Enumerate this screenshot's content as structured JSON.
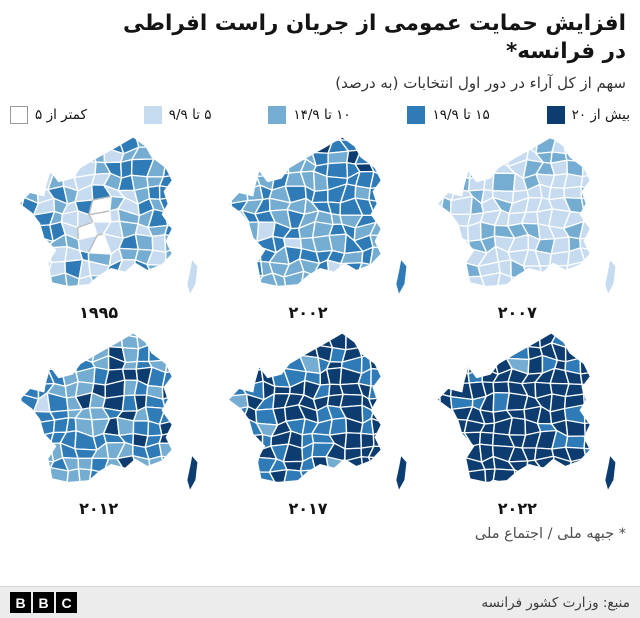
{
  "header": {
    "title_line1": "افزایش حمایت عمومی از جریان راست افراطی",
    "title_line2": "در فرانسه*",
    "subtitle": "سهم از کل آراء در دور اول انتخابات (به درصد)"
  },
  "legend": {
    "items": [
      {
        "label": "بیش از ۲۰",
        "color": "#0d3d70"
      },
      {
        "label": "۱۵ تا ۱۹/۹",
        "color": "#2e7bb8"
      },
      {
        "label": "۱۰ تا ۱۴/۹",
        "color": "#74add1"
      },
      {
        "label": "۵ تا ۹/۹",
        "color": "#c6dbef"
      },
      {
        "label": "کمتر از ۵",
        "color": "#ffffff"
      }
    ]
  },
  "footnote": "* جبهه ملی / اجتماع ملی",
  "footer": {
    "source": "منبع: وزارت کشور فرانسه",
    "logo_letters": [
      "B",
      "B",
      "C"
    ]
  },
  "chart_data": {
    "type": "heatmap",
    "subtype": "choropleth-map-series",
    "geography": "France, by department",
    "title": "افزایش حمایت عمومی از جریان راست افراطی در فرانسه*",
    "subtitle": "سهم از کل آراء در دور اول انتخابات (به درصد)",
    "unit_note": "به درصد",
    "legend_position": "top",
    "bins": [
      {
        "label": "کمتر از ۵",
        "min": 0,
        "max": 5,
        "color": "#ffffff"
      },
      {
        "label": "۵ تا ۹/۹",
        "min": 5,
        "max": 9.9,
        "color": "#c6dbef"
      },
      {
        "label": "۱۰ تا ۱۴/۹",
        "min": 10,
        "max": 14.9,
        "color": "#74add1"
      },
      {
        "label": "۱۵ تا ۱۹/۹",
        "min": 15,
        "max": 19.9,
        "color": "#2e7bb8"
      },
      {
        "label": "بیش از ۲۰",
        "min": 20,
        "max": null,
        "color": "#0d3d70"
      }
    ],
    "maps": [
      {
        "year": 1995,
        "label_fa": "۱۹۹۵",
        "bin_share_estimate": [
          0.08,
          0.3,
          0.33,
          0.21,
          0.08
        ],
        "east_bias": 0.3,
        "center_light": true,
        "paris_light": false,
        "corsica_bin": 1
      },
      {
        "year": 2002,
        "label_fa": "۲۰۰۲",
        "bin_share_estimate": [
          0.02,
          0.17,
          0.32,
          0.29,
          0.2
        ],
        "east_bias": 0.4,
        "center_light": false,
        "paris_light": false,
        "corsica_bin": 3
      },
      {
        "year": 2007,
        "label_fa": "۲۰۰۷",
        "bin_share_estimate": [
          0.04,
          0.68,
          0.24,
          0.03,
          0.01
        ],
        "east_bias": 0.15,
        "center_light": false,
        "paris_light": false,
        "corsica_bin": 1
      },
      {
        "year": 2012,
        "label_fa": "۲۰۱۲",
        "bin_share_estimate": [
          0.01,
          0.13,
          0.28,
          0.33,
          0.25
        ],
        "east_bias": 0.3,
        "center_light": false,
        "paris_light": true,
        "corsica_bin": 4
      },
      {
        "year": 2017,
        "label_fa": "۲۰۱۷",
        "bin_share_estimate": [
          0.0,
          0.04,
          0.14,
          0.3,
          0.52
        ],
        "east_bias": 0.35,
        "center_light": false,
        "paris_light": true,
        "corsica_bin": 4
      },
      {
        "year": 2022,
        "label_fa": "۲۰۲۲",
        "bin_share_estimate": [
          0.0,
          0.01,
          0.05,
          0.14,
          0.8
        ],
        "east_bias": 0.1,
        "center_light": false,
        "paris_light": true,
        "corsica_bin": 4
      }
    ]
  }
}
